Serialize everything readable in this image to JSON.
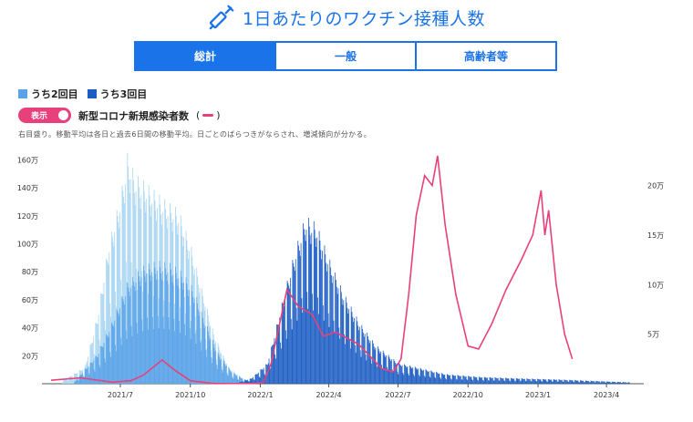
{
  "header": {
    "title": "1日あたりのワクチン接種人数",
    "icon": "syringe-icon",
    "accent": "#1a73e8"
  },
  "tabs": [
    {
      "label": "総計",
      "active": true
    },
    {
      "label": "一般",
      "active": false
    },
    {
      "label": "高齢者等",
      "active": false
    }
  ],
  "legend": {
    "second_dose": {
      "label": "うち2回目",
      "color": "#5ba3e8"
    },
    "third_dose": {
      "label": "うち3回目",
      "color": "#1c5dc4"
    }
  },
  "toggle": {
    "label": "表示",
    "on": true,
    "series_label": "新型コロナ新規感染者数",
    "paren_open": "(",
    "paren_close": ")",
    "color": "#e8407a"
  },
  "note": "右目盛り。移動平均は各日と過去6日間の移動平均。日ごとのばらつきがならされ、増減傾向が分かる。",
  "chart_data": {
    "type": "bar",
    "x_axis": {
      "ticks": [
        "2021/7",
        "2021/10",
        "2022/1",
        "2022/4",
        "2022/7",
        "2022/10",
        "2023/1",
        "2023/4"
      ]
    },
    "y_left": {
      "ticks": [
        "20万",
        "40万",
        "60万",
        "80万",
        "100万",
        "120万",
        "140万",
        "160万"
      ],
      "max": 1700000
    },
    "y_right": {
      "ticks": [
        "5万",
        "10万",
        "15万",
        "20万"
      ],
      "max": 240000
    },
    "series": [
      {
        "name": "総計",
        "color": "#a8d5f2",
        "points": [
          [
            "2021-04-15",
            20000
          ],
          [
            "2021-05-15",
            120000
          ],
          [
            "2021-06-01",
            500000
          ],
          [
            "2021-06-15",
            1000000
          ],
          [
            "2021-07-01",
            1350000
          ],
          [
            "2021-07-10",
            1650000
          ],
          [
            "2021-07-20",
            1500000
          ],
          [
            "2021-08-01",
            1450000
          ],
          [
            "2021-08-15",
            1380000
          ],
          [
            "2021-09-01",
            1300000
          ],
          [
            "2021-09-15",
            1250000
          ],
          [
            "2021-10-01",
            1000000
          ],
          [
            "2021-10-15",
            700000
          ],
          [
            "2021-11-01",
            350000
          ],
          [
            "2021-11-20",
            120000
          ],
          [
            "2021-12-10",
            30000
          ],
          [
            "2022-01-01",
            10000
          ]
        ]
      },
      {
        "name": "うち2回目",
        "color": "#5ba3e8",
        "points": [
          [
            "2021-05-01",
            10000
          ],
          [
            "2021-06-01",
            220000
          ],
          [
            "2021-06-20",
            450000
          ],
          [
            "2021-07-10",
            720000
          ],
          [
            "2021-08-01",
            850000
          ],
          [
            "2021-08-20",
            880000
          ],
          [
            "2021-09-05",
            860000
          ],
          [
            "2021-09-20",
            800000
          ],
          [
            "2021-10-05",
            680000
          ],
          [
            "2021-10-20",
            450000
          ],
          [
            "2021-11-05",
            230000
          ],
          [
            "2021-11-25",
            80000
          ],
          [
            "2021-12-15",
            20000
          ],
          [
            "2022-01-05",
            5000
          ]
        ]
      },
      {
        "name": "うち3回目",
        "color": "#1c5dc4",
        "points": [
          [
            "2021-12-01",
            5000
          ],
          [
            "2021-12-20",
            40000
          ],
          [
            "2022-01-10",
            150000
          ],
          [
            "2022-02-01",
            650000
          ],
          [
            "2022-02-15",
            950000
          ],
          [
            "2022-03-01",
            1200000
          ],
          [
            "2022-03-15",
            1150000
          ],
          [
            "2022-04-01",
            900000
          ],
          [
            "2022-04-20",
            650000
          ],
          [
            "2022-05-10",
            450000
          ],
          [
            "2022-06-01",
            280000
          ],
          [
            "2022-07-01",
            150000
          ],
          [
            "2022-08-01",
            110000
          ],
          [
            "2022-09-01",
            70000
          ],
          [
            "2022-10-15",
            50000
          ],
          [
            "2022-12-01",
            40000
          ],
          [
            "2023-02-01",
            30000
          ],
          [
            "2023-05-01",
            10000
          ]
        ]
      },
      {
        "name": "新型コロナ新規感染者数",
        "type": "line",
        "axis": "right",
        "color": "#e8407a",
        "points": [
          [
            "2021-04-01",
            3500
          ],
          [
            "2021-05-10",
            6000
          ],
          [
            "2021-06-20",
            1600
          ],
          [
            "2021-07-15",
            3000
          ],
          [
            "2021-08-01",
            9000
          ],
          [
            "2021-08-25",
            24000
          ],
          [
            "2021-09-10",
            14000
          ],
          [
            "2021-10-01",
            3000
          ],
          [
            "2021-11-01",
            200
          ],
          [
            "2021-12-20",
            300
          ],
          [
            "2022-01-05",
            1000
          ],
          [
            "2022-01-15",
            20000
          ],
          [
            "2022-02-05",
            95000
          ],
          [
            "2022-02-20",
            78000
          ],
          [
            "2022-03-10",
            70000
          ],
          [
            "2022-03-25",
            48000
          ],
          [
            "2022-04-10",
            52000
          ],
          [
            "2022-04-25",
            46000
          ],
          [
            "2022-05-10",
            40000
          ],
          [
            "2022-05-25",
            28000
          ],
          [
            "2022-06-10",
            15000
          ],
          [
            "2022-06-25",
            12000
          ],
          [
            "2022-07-05",
            25000
          ],
          [
            "2022-07-15",
            90000
          ],
          [
            "2022-07-25",
            170000
          ],
          [
            "2022-08-05",
            210000
          ],
          [
            "2022-08-15",
            200000
          ],
          [
            "2022-08-22",
            230000
          ],
          [
            "2022-09-01",
            160000
          ],
          [
            "2022-09-15",
            90000
          ],
          [
            "2022-10-01",
            38000
          ],
          [
            "2022-10-15",
            35000
          ],
          [
            "2022-11-01",
            60000
          ],
          [
            "2022-11-20",
            95000
          ],
          [
            "2022-12-10",
            125000
          ],
          [
            "2022-12-25",
            150000
          ],
          [
            "2023-01-05",
            195000
          ],
          [
            "2023-01-10",
            150000
          ],
          [
            "2023-01-15",
            175000
          ],
          [
            "2023-01-25",
            100000
          ],
          [
            "2023-02-05",
            50000
          ],
          [
            "2023-02-15",
            25000
          ]
        ]
      }
    ]
  }
}
